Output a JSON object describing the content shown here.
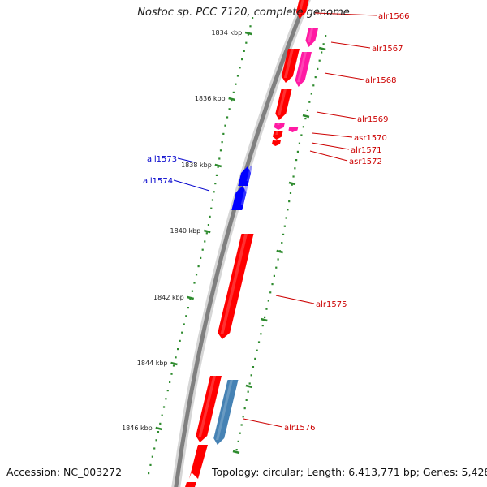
{
  "title": "Nostoc sp. PCC 7120, complete genome",
  "footer": {
    "accession": "Accession: NC_003272",
    "topology": "Topology: circular; Length: 6,413,771 bp; Genes: 5,428"
  },
  "colors": {
    "forward_strand": "#ff0000",
    "forward_secondary": "#ff1aa3",
    "reverse_strand": "#0000ff",
    "reverse_secondary": "#4682b4",
    "label_forward": "#cc0000",
    "label_reverse": "#0000cc",
    "ruler_tick": "#2e8b2e",
    "backbone": "#808080"
  },
  "ruler": {
    "unit": "kbp",
    "labels": [
      "1834 kbp",
      "1836 kbp",
      "1838 kbp",
      "1840 kbp",
      "1842 kbp",
      "1844 kbp",
      "1846 kbp"
    ]
  },
  "genes": [
    {
      "name": "alr1566",
      "strand": "forward",
      "color": "forward_strand"
    },
    {
      "name": "alr1567",
      "strand": "forward",
      "color": "forward_secondary"
    },
    {
      "name": "alr1568",
      "strand": "forward",
      "color": "forward_strand"
    },
    {
      "name": "alr1569",
      "strand": "forward",
      "color": "forward_strand"
    },
    {
      "name": "asr1570",
      "strand": "forward",
      "color": "forward_secondary"
    },
    {
      "name": "alr1571",
      "strand": "forward",
      "color": "forward_strand"
    },
    {
      "name": "asr1572",
      "strand": "forward",
      "color": "forward_strand"
    },
    {
      "name": "all1573",
      "strand": "reverse",
      "color": "reverse_strand"
    },
    {
      "name": "all1574",
      "strand": "reverse",
      "color": "reverse_strand"
    },
    {
      "name": "alr1575",
      "strand": "forward",
      "color": "forward_strand"
    },
    {
      "name": "alr1576",
      "strand": "forward",
      "color": "forward_strand"
    }
  ]
}
